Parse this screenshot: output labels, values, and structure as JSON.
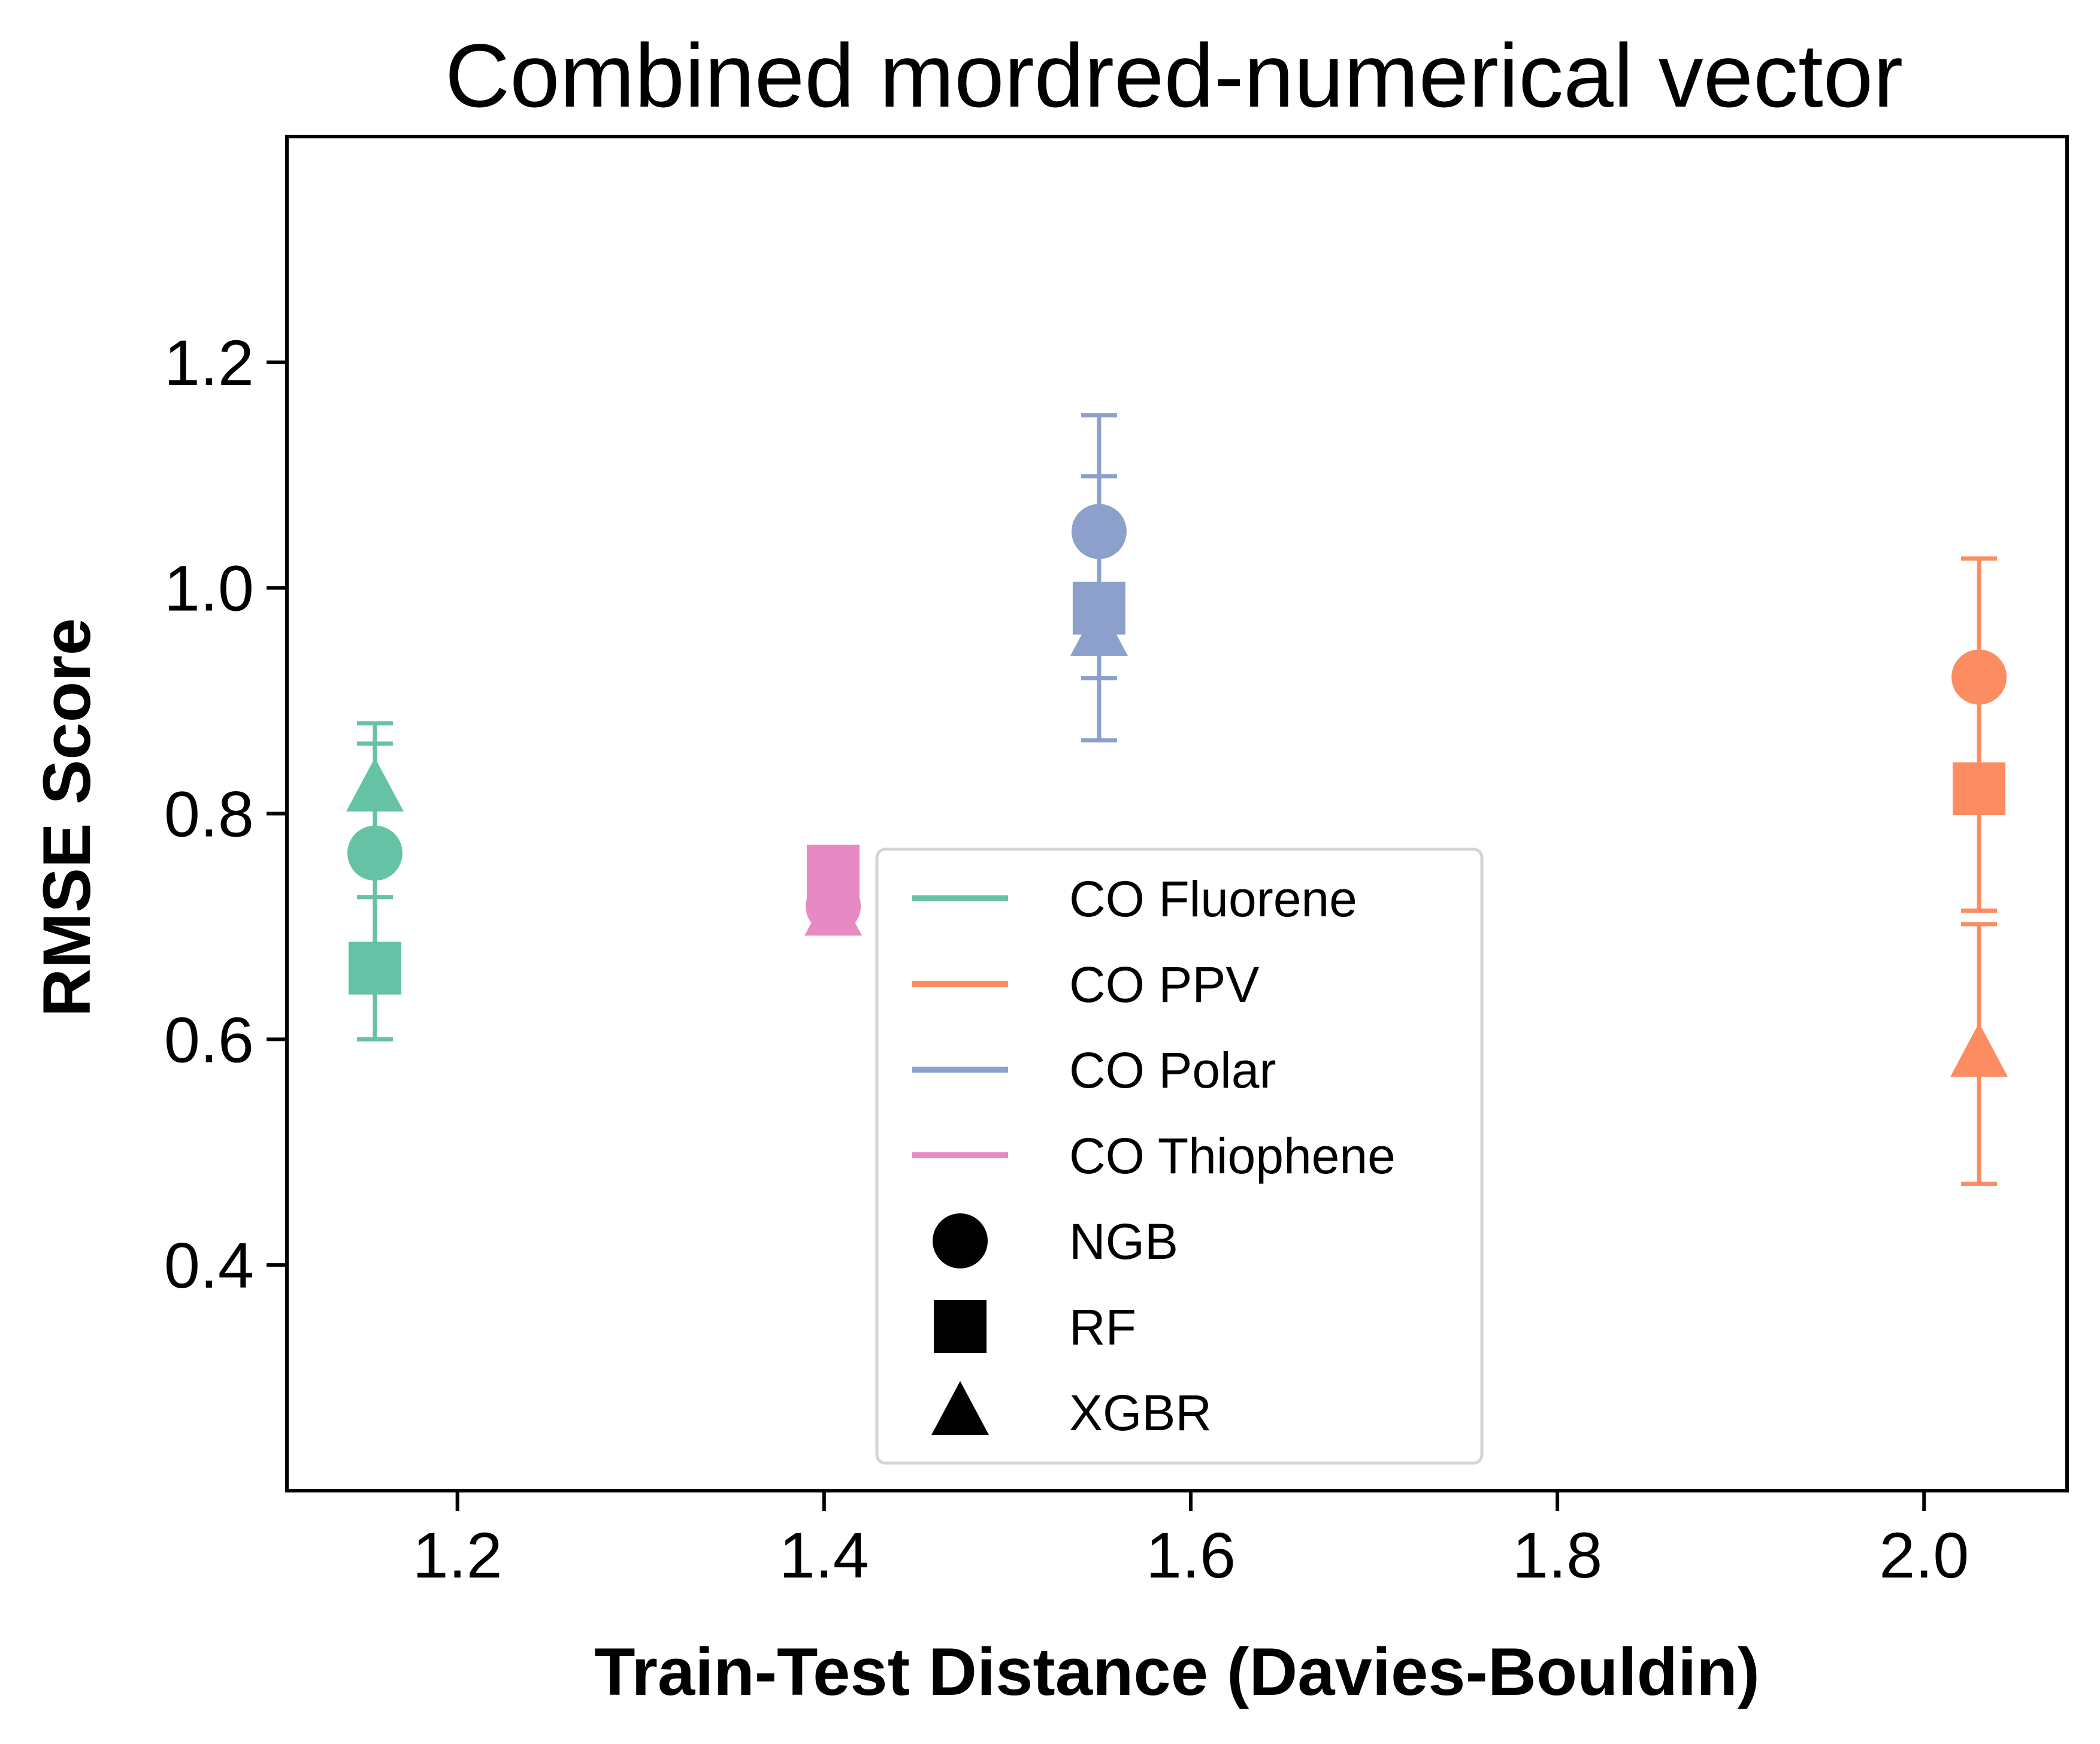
{
  "chart_data": {
    "type": "scatter",
    "title": "Combined mordred-numerical vector",
    "xlabel": "Train-Test Distance (Davies-Bouldin)",
    "ylabel": "RMSE Score",
    "xlim": [
      1.107,
      2.078
    ],
    "ylim": [
      0.2,
      1.4
    ],
    "xticks": [
      {
        "value": 1.2,
        "label": "1.2"
      },
      {
        "value": 1.4,
        "label": "1.4"
      },
      {
        "value": 1.6,
        "label": "1.6"
      },
      {
        "value": 1.8,
        "label": "1.8"
      },
      {
        "value": 2.0,
        "label": "2.0"
      }
    ],
    "yticks": [
      {
        "value": 0.4,
        "label": "0.4"
      },
      {
        "value": 0.6,
        "label": "0.6"
      },
      {
        "value": 0.8,
        "label": "0.8"
      },
      {
        "value": 1.0,
        "label": "1.0"
      },
      {
        "value": 1.2,
        "label": "1.2"
      }
    ],
    "grid": false,
    "legend_position": "lower-center",
    "groups": [
      {
        "name": "CO Fluorene",
        "color": "#66c2a5",
        "x": 1.155
      },
      {
        "name": "CO PPV",
        "color": "#fc8d62",
        "x": 2.03
      },
      {
        "name": "CO Polar",
        "color": "#8da0cb",
        "x": 1.55
      },
      {
        "name": "CO Thiophene",
        "color": "#e78ac3",
        "x": 1.405
      }
    ],
    "models": [
      {
        "name": "NGB",
        "marker": "circle"
      },
      {
        "name": "RF",
        "marker": "square"
      },
      {
        "name": "XGBR",
        "marker": "triangle"
      }
    ],
    "points": [
      {
        "group": "CO Fluorene",
        "model": "NGB",
        "x": 1.155,
        "y": 0.765,
        "err": 0.115
      },
      {
        "group": "CO Fluorene",
        "model": "RF",
        "x": 1.155,
        "y": 0.663,
        "err": 0.063
      },
      {
        "group": "CO Fluorene",
        "model": "XGBR",
        "x": 1.155,
        "y": 0.822,
        "err": 0.04
      },
      {
        "group": "CO PPV",
        "model": "NGB",
        "x": 2.03,
        "y": 0.921,
        "err": 0.105
      },
      {
        "group": "CO PPV",
        "model": "RF",
        "x": 2.03,
        "y": 0.822,
        "err": 0.108
      },
      {
        "group": "CO PPV",
        "model": "XGBR",
        "x": 2.03,
        "y": 0.587,
        "err": 0.115
      },
      {
        "group": "CO Polar",
        "model": "NGB",
        "x": 1.55,
        "y": 1.05,
        "err": 0.103
      },
      {
        "group": "CO Polar",
        "model": "RF",
        "x": 1.55,
        "y": 0.982,
        "err": 0.117
      },
      {
        "group": "CO Polar",
        "model": "XGBR",
        "x": 1.55,
        "y": 0.96,
        "err": 0.04
      },
      {
        "group": "CO Thiophene",
        "model": "NGB",
        "x": 1.405,
        "y": 0.718,
        "err": 0.0
      },
      {
        "group": "CO Thiophene",
        "model": "RF",
        "x": 1.405,
        "y": 0.749,
        "err": 0.0
      },
      {
        "group": "CO Thiophene",
        "model": "XGBR",
        "x": 1.405,
        "y": 0.712,
        "err": 0.0
      }
    ]
  }
}
